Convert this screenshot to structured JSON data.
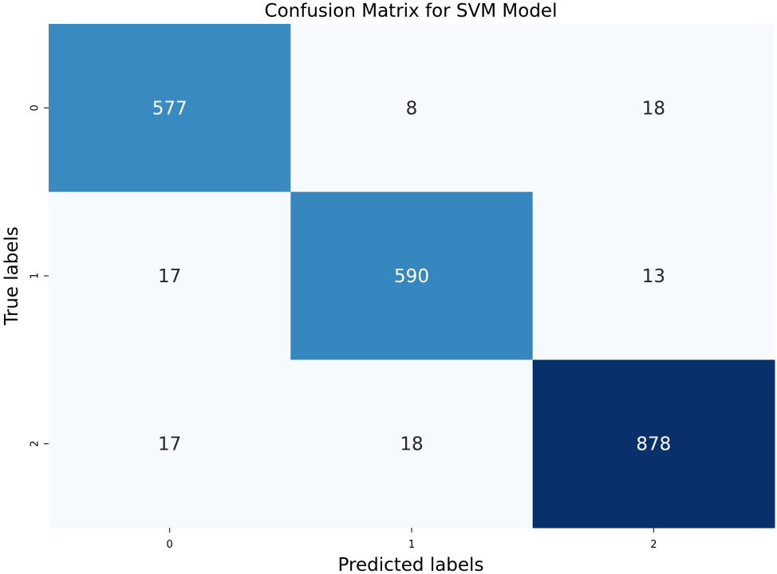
{
  "chart_data": {
    "type": "heatmap",
    "title": "Confusion Matrix for SVM Model",
    "xlabel": "Predicted labels",
    "ylabel": "True labels",
    "x_categories": [
      "0",
      "1",
      "2"
    ],
    "y_categories": [
      "0",
      "1",
      "2"
    ],
    "values": [
      [
        577,
        8,
        18
      ],
      [
        17,
        590,
        13
      ],
      [
        17,
        18,
        878
      ]
    ],
    "colormap": "Blues",
    "value_range": [
      8,
      878
    ],
    "colorbar": false,
    "grid": false,
    "colors": {
      "low": "#f7fbff",
      "high": "#08306b"
    }
  }
}
